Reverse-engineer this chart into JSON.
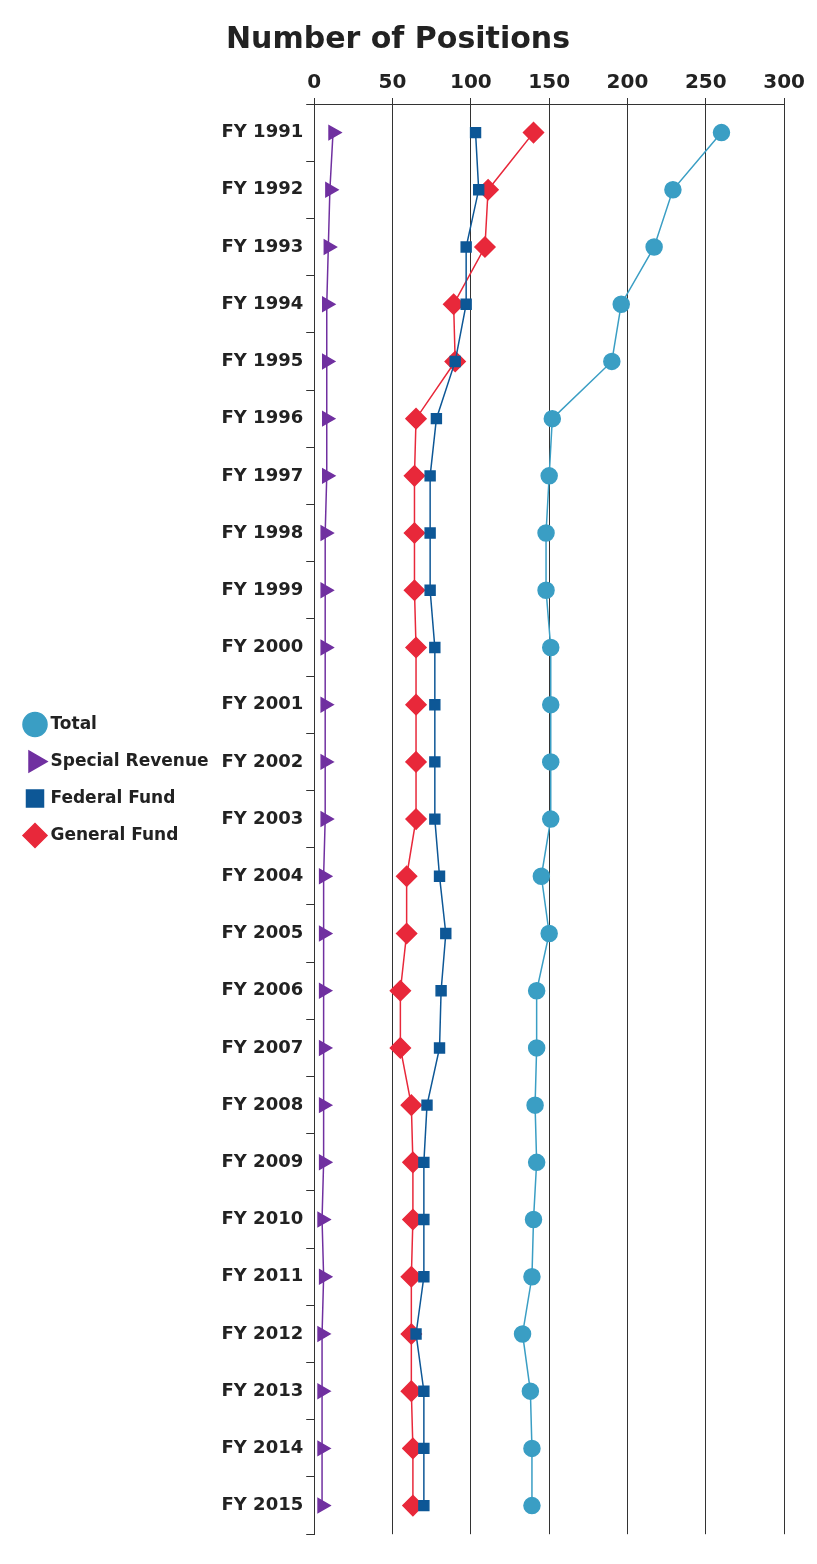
{
  "chart_data": {
    "type": "line",
    "orientation": "horizontal",
    "title": "Number of Positions",
    "categories": [
      "FY 1991",
      "FY 1992",
      "FY 1993",
      "FY 1994",
      "FY 1995",
      "FY 1996",
      "FY 1997",
      "FY 1998",
      "FY 1999",
      "FY 2000",
      "FY 2001",
      "FY 2002",
      "FY 2003",
      "FY 2004",
      "FY 2005",
      "FY 2006",
      "FY 2007",
      "FY 2008",
      "FY 2009",
      "FY 2010",
      "FY 2011",
      "FY 2012",
      "FY 2013",
      "FY 2014",
      "FY 2015"
    ],
    "series": [
      {
        "name": "General Fund",
        "color": "#e8283a",
        "marker": "diamond",
        "values": [
          140,
          111,
          109,
          89,
          90,
          65,
          64,
          64,
          64,
          65,
          65,
          65,
          65,
          59,
          59,
          55,
          55,
          62,
          63,
          63,
          62,
          62,
          62,
          63,
          63
        ]
      },
      {
        "name": "Federal Fund",
        "color": "#0d5796",
        "marker": "square",
        "values": [
          103,
          105,
          97,
          97,
          90,
          78,
          74,
          74,
          74,
          77,
          77,
          77,
          77,
          80,
          84,
          81,
          80,
          72,
          70,
          70,
          70,
          65,
          70,
          70,
          70
        ]
      },
      {
        "name": "Special Revenue",
        "color": "#7030a0",
        "marker": "triangle",
        "values": [
          12,
          10,
          9,
          8,
          8,
          8,
          8,
          7,
          7,
          7,
          7,
          7,
          7,
          6,
          6,
          6,
          6,
          6,
          6,
          5,
          6,
          5,
          5,
          5,
          5
        ]
      },
      {
        "name": "Total",
        "color": "#3a9ec4",
        "marker": "circle",
        "values": [
          260,
          229,
          217,
          196,
          190,
          152,
          150,
          148,
          148,
          151,
          151,
          151,
          151,
          145,
          150,
          142,
          142,
          141,
          142,
          140,
          139,
          133,
          138,
          139,
          139
        ]
      }
    ],
    "xlim": [
      0,
      300
    ],
    "xticks": [
      0,
      50,
      100,
      150,
      200,
      250,
      300
    ],
    "grid": "x",
    "legend": "left"
  }
}
